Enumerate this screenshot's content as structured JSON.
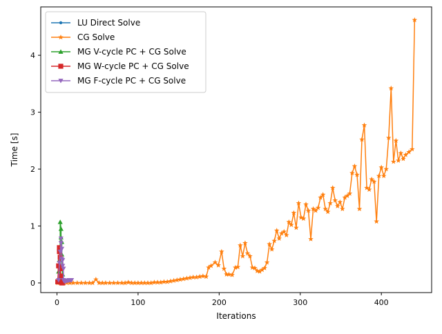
{
  "chart_data": {
    "type": "line",
    "title": "",
    "xlabel": "Iterations",
    "ylabel": "Time [s]",
    "xlim": [
      -20,
      462
    ],
    "ylim": [
      -0.17,
      4.85
    ],
    "xticks": [
      0,
      100,
      200,
      300,
      400
    ],
    "yticks": [
      0,
      1,
      2,
      3,
      4
    ],
    "grid": false,
    "legend_position": "top-left",
    "series": [
      {
        "name": "LU Direct Solve",
        "color": "#1f77b4",
        "marker": "point",
        "x": [
          1,
          2,
          3,
          4,
          5,
          6,
          7
        ],
        "y": [
          0.0,
          0.0,
          0.01,
          0.01,
          0.02,
          0.03,
          0.05
        ]
      },
      {
        "name": "CG Solve",
        "color": "#ff7f0e",
        "marker": "star",
        "x": [
          1,
          3,
          5,
          8,
          12,
          16,
          20,
          25,
          30,
          35,
          40,
          44,
          48,
          52,
          56,
          60,
          65,
          70,
          75,
          80,
          84,
          88,
          92,
          96,
          100,
          104,
          108,
          112,
          116,
          120,
          124,
          128,
          132,
          136,
          140,
          144,
          148,
          152,
          156,
          160,
          164,
          168,
          172,
          176,
          180,
          184,
          187,
          190,
          195,
          199,
          203,
          206,
          209,
          212,
          216,
          220,
          223,
          226,
          229,
          232,
          235,
          238,
          241,
          244,
          247,
          250,
          253,
          256,
          259,
          262,
          265,
          268,
          271,
          274,
          277,
          280,
          283,
          286,
          289,
          292,
          295,
          298,
          301,
          304,
          307,
          310,
          313,
          316,
          319,
          322,
          325,
          328,
          331,
          334,
          337,
          340,
          343,
          346,
          349,
          352,
          355,
          358,
          361,
          364,
          367,
          370,
          373,
          376,
          379,
          382,
          385,
          388,
          391,
          394,
          397,
          400,
          403,
          406,
          409,
          412,
          415,
          418,
          421,
          424,
          427,
          430,
          434,
          438,
          441
        ],
        "y": [
          0.0,
          0.0,
          0.0,
          0.0,
          0.0,
          0.0,
          0.0,
          0.0,
          0.0,
          0.0,
          0.0,
          0.0,
          0.06,
          0.0,
          0.0,
          0.0,
          0.0,
          0.0,
          0.0,
          0.0,
          0.0,
          0.01,
          0.0,
          0.0,
          0.0,
          0.0,
          0.0,
          0.0,
          0.0,
          0.01,
          0.01,
          0.01,
          0.02,
          0.02,
          0.03,
          0.04,
          0.05,
          0.06,
          0.07,
          0.08,
          0.09,
          0.1,
          0.1,
          0.11,
          0.12,
          0.11,
          0.27,
          0.3,
          0.36,
          0.31,
          0.55,
          0.25,
          0.15,
          0.15,
          0.14,
          0.27,
          0.28,
          0.66,
          0.47,
          0.7,
          0.52,
          0.47,
          0.27,
          0.26,
          0.21,
          0.2,
          0.23,
          0.26,
          0.36,
          0.68,
          0.59,
          0.74,
          0.92,
          0.78,
          0.87,
          0.9,
          0.84,
          1.07,
          1.02,
          1.23,
          0.97,
          1.4,
          1.15,
          1.13,
          1.38,
          1.27,
          0.77,
          1.3,
          1.27,
          1.32,
          1.5,
          1.55,
          1.3,
          1.25,
          1.4,
          1.67,
          1.45,
          1.35,
          1.42,
          1.3,
          1.5,
          1.53,
          1.57,
          1.93,
          2.05,
          1.9,
          1.3,
          2.52,
          2.77,
          1.67,
          1.64,
          1.82,
          1.78,
          1.08,
          1.88,
          2.03,
          1.88,
          2.0,
          2.55,
          3.42,
          2.13,
          2.5,
          2.15,
          2.28,
          2.18,
          2.25,
          2.3,
          2.35,
          4.62
        ]
      },
      {
        "name": "MG V-cycle PC + CG Solve",
        "color": "#2ca02c",
        "marker": "triangle-up",
        "x": [
          1,
          2,
          3,
          4,
          4,
          5,
          5,
          6,
          6,
          6,
          7
        ],
        "y": [
          0.02,
          0.2,
          0.4,
          0.6,
          1.07,
          0.95,
          0.8,
          0.72,
          0.5,
          0.3,
          0.15
        ]
      },
      {
        "name": "MG W-cycle PC + CG Solve",
        "color": "#d62728",
        "marker": "square",
        "x": [
          1,
          2,
          3,
          3,
          4,
          4,
          5,
          5,
          6,
          6,
          7
        ],
        "y": [
          0.02,
          0.3,
          0.55,
          0.62,
          0.45,
          0.25,
          0.12,
          0.05,
          0.02,
          0.0,
          0.0
        ]
      },
      {
        "name": "MG F-cycle PC + CG Solve",
        "color": "#9467bd",
        "marker": "triangle-down",
        "x": [
          2,
          3,
          4,
          5,
          5,
          6,
          6,
          7,
          7,
          8,
          8,
          9,
          10,
          11,
          12,
          13,
          14,
          15,
          16,
          17,
          18
        ],
        "y": [
          0.05,
          0.35,
          0.55,
          0.7,
          0.78,
          0.6,
          0.42,
          0.3,
          0.4,
          0.25,
          0.05,
          0.03,
          0.03,
          0.03,
          0.04,
          0.04,
          0.04,
          0.05,
          0.05,
          0.05,
          0.05
        ]
      }
    ]
  }
}
